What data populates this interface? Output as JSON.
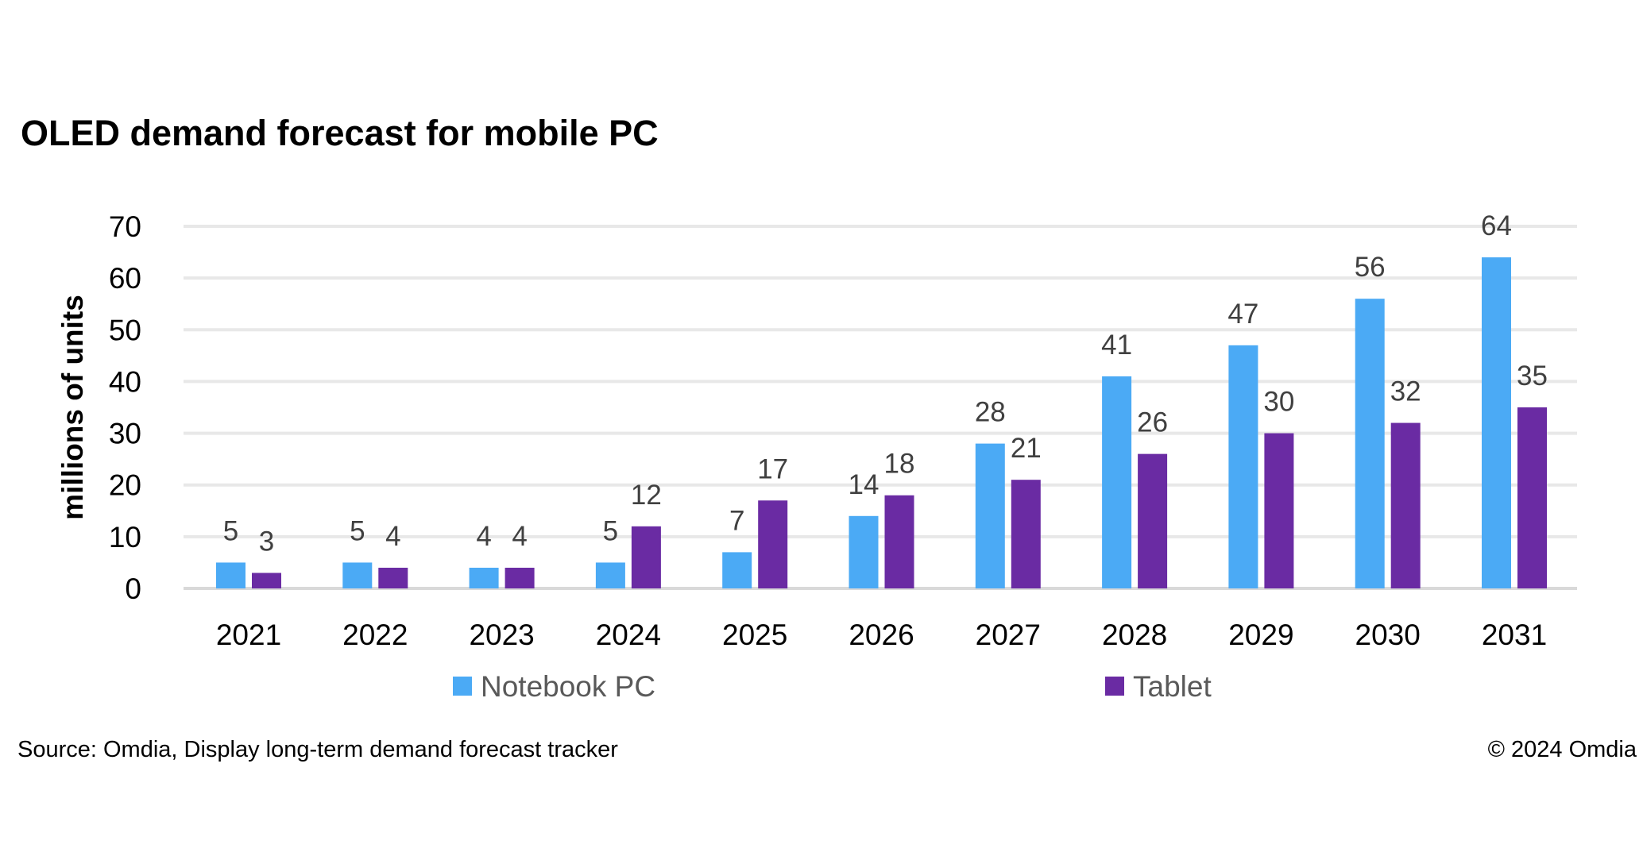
{
  "chart_data": {
    "type": "bar",
    "title": "OLED demand forecast for mobile PC",
    "xlabel": "",
    "ylabel": "millions of units",
    "ylim": [
      0,
      70
    ],
    "yticks": [
      0,
      10,
      20,
      30,
      40,
      50,
      60,
      70
    ],
    "grid": true,
    "legend_position": "bottom",
    "categories": [
      "2021",
      "2022",
      "2023",
      "2024",
      "2025",
      "2026",
      "2027",
      "2028",
      "2029",
      "2030",
      "2031"
    ],
    "series": [
      {
        "name": "Notebook PC",
        "color": "#4BAAF5",
        "values": [
          5,
          5,
          4,
          5,
          7,
          14,
          28,
          41,
          47,
          56,
          64
        ]
      },
      {
        "name": "Tablet",
        "color": "#6A2BA3",
        "values": [
          3,
          4,
          4,
          12,
          17,
          18,
          21,
          26,
          30,
          32,
          35
        ]
      }
    ]
  },
  "footer": {
    "source": "Source: Omdia, Display long-term demand forecast tracker",
    "copyright": "© 2024 Omdia"
  }
}
